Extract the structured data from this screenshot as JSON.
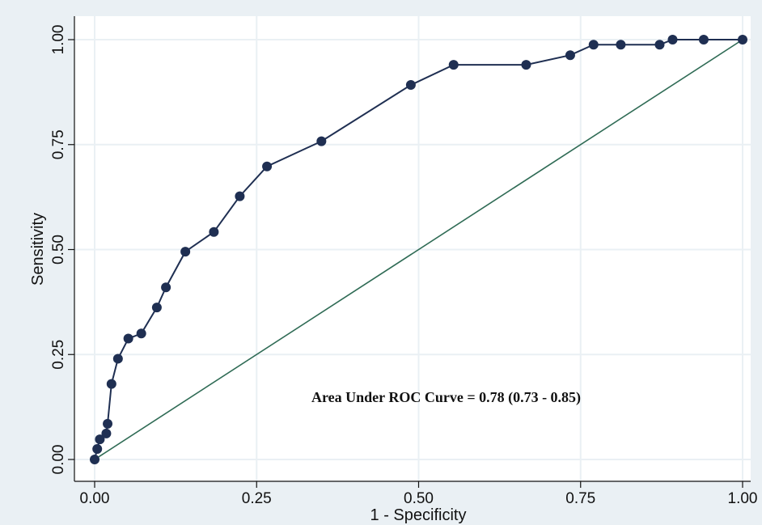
{
  "chart_data": {
    "type": "line",
    "xlabel": "1 - Specificity",
    "ylabel": "Sensitivity",
    "xlim": [
      0,
      1
    ],
    "ylim": [
      0,
      1
    ],
    "x_ticks": [
      "0.00",
      "0.25",
      "0.50",
      "0.75",
      "1.00"
    ],
    "y_ticks": [
      "0.00",
      "0.25",
      "0.50",
      "0.75",
      "1.00"
    ],
    "grid": true,
    "annotation": "Area Under ROC Curve = 0.78 (0.73 - 0.85)",
    "series": [
      {
        "x": [
          0.0,
          0.004,
          0.008,
          0.018,
          0.02,
          0.026,
          0.036,
          0.052,
          0.072,
          0.096,
          0.11,
          0.14,
          0.184,
          0.224,
          0.266,
          0.35,
          0.488,
          0.554,
          0.666,
          0.734,
          0.77,
          0.812,
          0.872,
          0.892,
          0.94,
          1.0
        ],
        "y": [
          0.0,
          0.025,
          0.048,
          0.062,
          0.085,
          0.18,
          0.24,
          0.288,
          0.3,
          0.362,
          0.41,
          0.495,
          0.542,
          0.627,
          0.698,
          0.758,
          0.892,
          0.94,
          0.94,
          0.963,
          0.988,
          0.988,
          0.988,
          1.0,
          1.0,
          1.0
        ]
      },
      {
        "x": [
          0,
          1
        ],
        "y": [
          0,
          1
        ]
      }
    ],
    "colors": {
      "curve": "#1f2f52",
      "reference": "#2f6b55",
      "grid": "#eaf0f4",
      "plot_bg": "#ffffff",
      "bg": "#eaf0f4"
    }
  }
}
